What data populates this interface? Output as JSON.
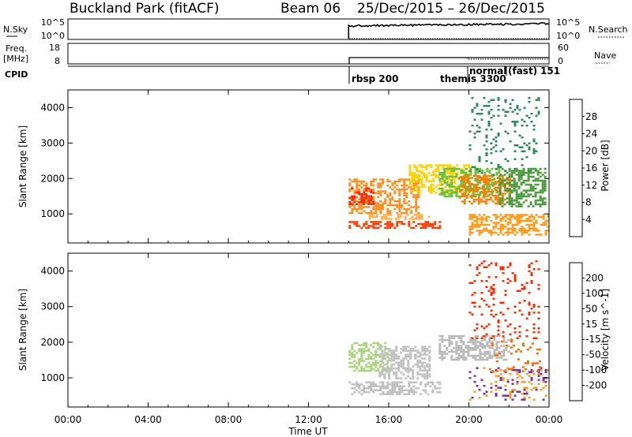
{
  "header": {
    "station": "Buckland Park (fitACF)",
    "beam": "Beam 06",
    "dates": "25/Dec/2015 – 26/Dec/2015"
  },
  "top_panels": {
    "nsky_label": "N.Sky",
    "nsearch_label": "N.Search",
    "nsky_ticks": [
      "10^5",
      "10^0"
    ],
    "nsearch_ticks": [
      "10^5",
      "10^0"
    ],
    "freq_label_1": "Freq.",
    "freq_label_2": "[MHz]",
    "freq_ticks": [
      "18",
      "8"
    ],
    "nave_label": "Nave",
    "nave_ticks": [
      "60",
      "0"
    ],
    "cpid_label": "CPID",
    "cpid_entries": [
      {
        "text": "rbsp 200",
        "start_hour": 14.0
      },
      {
        "text": "themis 3300",
        "start_hour": 20.0
      },
      {
        "text": "normal",
        "start_hour": 20.1
      },
      {
        "text": "(fast)",
        "start_hour": 21.9
      },
      {
        "text": "151",
        "start_hour": 23.4
      }
    ]
  },
  "chart_data": [
    {
      "type": "heatmap",
      "name": "power",
      "ylabel": "Slant Range [km]",
      "xlim_hours": [
        0,
        24
      ],
      "ylim_km": [
        180,
        4500
      ],
      "yticks": [
        1000,
        2000,
        3000,
        4000
      ],
      "colorbar": {
        "label": "Power [dB]",
        "ticks": [
          "28",
          "24",
          "20",
          "16",
          "12",
          "8",
          "4"
        ],
        "colors": [
          "#0000ff",
          "#1f4fa6",
          "#2e8b57",
          "#4a9a3a",
          "#7fbf3a",
          "#c8d64a",
          "#ffd000",
          "#ff9a1a",
          "#ff6a00",
          "#ff3a00",
          "#ff0000"
        ]
      },
      "regions": [
        {
          "x": [
            14.0,
            17.5
          ],
          "y": [
            1000,
            2000
          ],
          "color": "#ff8c1a"
        },
        {
          "x": [
            14.0,
            15.2
          ],
          "y": [
            1300,
            1750
          ],
          "color": "#ff2a00"
        },
        {
          "x": [
            14.0,
            18.6
          ],
          "y": [
            600,
            800
          ],
          "color": "#ff3a00"
        },
        {
          "x": [
            15.0,
            18.0
          ],
          "y": [
            850,
            1000
          ],
          "color": "#ffb050"
        },
        {
          "x": [
            17.0,
            20.0
          ],
          "y": [
            1600,
            2400
          ],
          "color": "#ffd000"
        },
        {
          "x": [
            18.5,
            21.5
          ],
          "y": [
            1500,
            2300
          ],
          "color": "#6abf3a"
        },
        {
          "x": [
            19.5,
            22.0
          ],
          "y": [
            1300,
            2100
          ],
          "color": "#ff7a00"
        },
        {
          "x": [
            20.0,
            24.0
          ],
          "y": [
            400,
            1000
          ],
          "color": "#ff9a1a"
        },
        {
          "x": [
            21.5,
            23.8
          ],
          "y": [
            1200,
            2300
          ],
          "color": "#4a9a3a"
        },
        {
          "x": [
            20.0,
            23.5
          ],
          "y": [
            2100,
            4300
          ],
          "color": "#2e8b57",
          "sparse": true
        }
      ]
    },
    {
      "type": "heatmap",
      "name": "velocity",
      "xlabel": "Time UT",
      "ylabel": "Slant Range [km]",
      "xlim_hours": [
        0,
        24
      ],
      "ylim_km": [
        180,
        4500
      ],
      "yticks": [
        1000,
        2000,
        3000,
        4000
      ],
      "xticks": [
        "00:00",
        "04:00",
        "08:00",
        "12:00",
        "16:00",
        "20:00",
        "00:00"
      ],
      "colorbar": {
        "label": "Velocity [m s^-1]",
        "ticks": [
          "200",
          "100",
          "50",
          "15",
          "-15",
          "-50",
          "-100",
          "-200"
        ],
        "colors": [
          "#0000ff",
          "#1f3fbf",
          "#2e8b57",
          "#39b54a",
          "#8fd14f",
          "#c0c0c0",
          "#ffd000",
          "#ff9a1a",
          "#ff5a00",
          "#ff0000"
        ]
      },
      "regions": [
        {
          "x": [
            14.0,
            18.5
          ],
          "y": [
            550,
            900
          ],
          "color": "#c0c0c0"
        },
        {
          "x": [
            14.0,
            16.0
          ],
          "y": [
            1200,
            2000
          ],
          "color": "#a8d27a"
        },
        {
          "x": [
            15.5,
            18.0
          ],
          "y": [
            1000,
            1900
          ],
          "color": "#c0c0c0"
        },
        {
          "x": [
            18.5,
            22.0
          ],
          "y": [
            1500,
            2200
          ],
          "color": "#b8b8b8"
        },
        {
          "x": [
            20.0,
            24.0
          ],
          "y": [
            400,
            1300
          ],
          "color": "#ff9a1a",
          "sparse": true
        },
        {
          "x": [
            20.0,
            24.0
          ],
          "y": [
            400,
            1300
          ],
          "color": "#7a2fa0",
          "sparse": true
        },
        {
          "x": [
            21.0,
            23.5
          ],
          "y": [
            1200,
            2100
          ],
          "color": "#ff6a00",
          "sparse": true
        },
        {
          "x": [
            20.0,
            23.5
          ],
          "y": [
            2100,
            4300
          ],
          "color": "#ff2a00",
          "sparse": true
        }
      ]
    }
  ]
}
